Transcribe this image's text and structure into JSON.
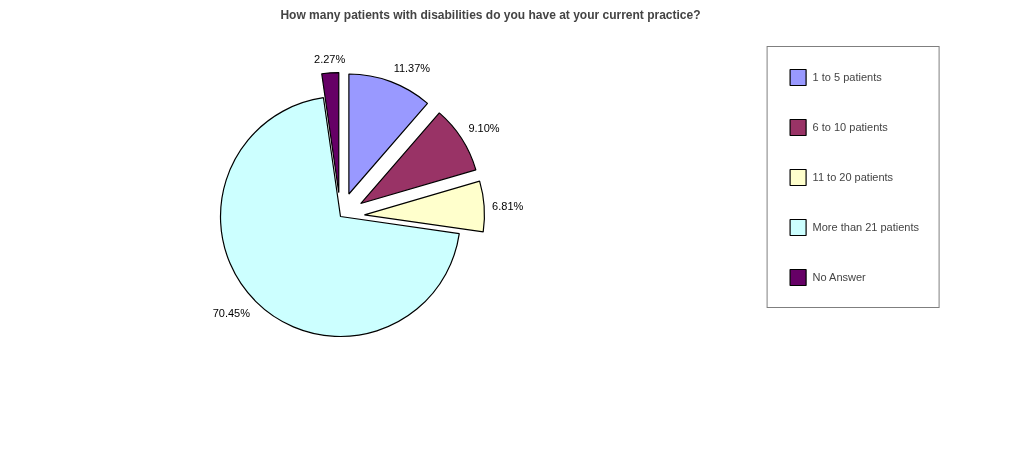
{
  "chart_data": {
    "type": "pie",
    "title": "How many patients with disabilities do you have at your current practice?",
    "categories": [
      "1 to 5 patients",
      "6 to 10 patients",
      "11 to 20 patients",
      "More than 21 patients",
      "No Answer"
    ],
    "values": [
      11.37,
      9.1,
      6.81,
      70.45,
      2.27
    ],
    "value_labels": [
      "11.37%",
      "9.10%",
      "6.81%",
      "70.45%",
      "2.27%"
    ],
    "colors": [
      "#9999ff",
      "#993366",
      "#ffffcc",
      "#ccffff",
      "#660066"
    ],
    "legend": "right"
  }
}
